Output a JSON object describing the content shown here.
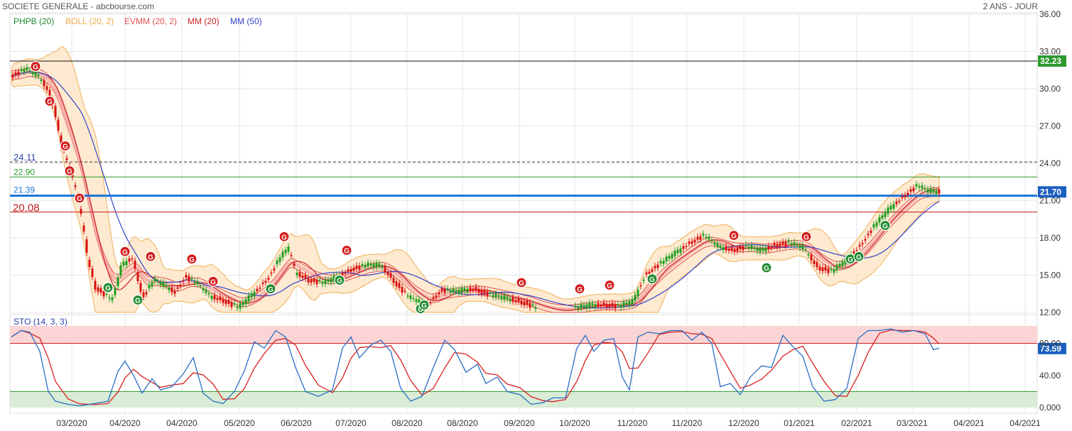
{
  "header": {
    "title": "SOCIETE GENERALE - abcbourse.com",
    "period": "2 ANS - JOUR"
  },
  "legend": {
    "phpb": "PHPB (20)",
    "boll": "BOLL (20, 2)",
    "evmm": "EVMM (20, 2)",
    "mm20": "MM (20)",
    "mm50": "MM (50)"
  },
  "colors": {
    "up": "#1e9e1e",
    "down": "#d81010",
    "boll_fill": "#fde8cc",
    "boll_line": "#f0a848",
    "evmm": "#e05050",
    "mm20": "#cc2222",
    "mm50": "#3344cc",
    "hline_blue": "#1a74d6",
    "sto_k": "#2a6fc4",
    "sto_d": "#d82020",
    "sto_top_zone": "#fbd5d5",
    "sto_bottom_zone": "#d9ecd6"
  },
  "levels": {
    "resistance": {
      "value": 32.23,
      "label": "32.23"
    },
    "dashed": {
      "value": 24.11,
      "label": "24.11"
    },
    "green": {
      "value": 22.9,
      "label": "22.90"
    },
    "last": {
      "value": 21.7,
      "label": "21.70"
    },
    "blue": {
      "value": 21.39,
      "label": "21.39"
    },
    "red": {
      "value": 20.08,
      "label": "20.08"
    }
  },
  "sto": {
    "label": "STO (14, 3, 3)",
    "last_label": "73.59",
    "last": 73.59,
    "upper": 80,
    "lower": 20
  },
  "chart_data": {
    "type": "line",
    "price": {
      "y_ticks": [
        "36.00",
        "33.00",
        "30.00",
        "27.00",
        "24.00",
        "21.00",
        "18.00",
        "15.00",
        "12.00"
      ],
      "ylim": [
        12,
        36
      ],
      "x_labels": [
        "03/2020",
        "04/2020",
        "04/2020",
        "05/2020",
        "06/2020",
        "07/2020",
        "08/2020",
        "08/2020",
        "09/2020",
        "10/2020",
        "11/2020",
        "11/2020",
        "12/2020",
        "01/2021",
        "02/2021",
        "03/2021",
        "04/2021",
        "04/2021"
      ],
      "series": [
        {
          "x": [
            0,
            2,
            4,
            6,
            8,
            10,
            12,
            14,
            16,
            18,
            20,
            22,
            24,
            26,
            28,
            30,
            32,
            34,
            36,
            38,
            40,
            42,
            44,
            46,
            48,
            50,
            52,
            54,
            56,
            58,
            60,
            62,
            64,
            66,
            68,
            70,
            72,
            74,
            76,
            78,
            80,
            82,
            84,
            86,
            88,
            90,
            92,
            94,
            96,
            98,
            100,
            102,
            104,
            106,
            108,
            110,
            112,
            114,
            116,
            118,
            120,
            122,
            124,
            126,
            128,
            130,
            132,
            134,
            136,
            138,
            140,
            142,
            144,
            146,
            148,
            150,
            152,
            154,
            156,
            158,
            160,
            162,
            164,
            166,
            168,
            170,
            172,
            174,
            176,
            178,
            180,
            182,
            184,
            186,
            188,
            190,
            192,
            194,
            196,
            198,
            200,
            202,
            204,
            206,
            208,
            210,
            212,
            214,
            216,
            218,
            220,
            222,
            224,
            226,
            228,
            230,
            232,
            234,
            236,
            238,
            240,
            242,
            244,
            246,
            248,
            250,
            252,
            254,
            256,
            258,
            260,
            262,
            264,
            266,
            268,
            270,
            272,
            274,
            276,
            278,
            280,
            282,
            284,
            286,
            288,
            290,
            292,
            294,
            296,
            298,
            300,
            302,
            304,
            306,
            308,
            310,
            312,
            314,
            316,
            318,
            320,
            322,
            324,
            326,
            328,
            330,
            332,
            334,
            336,
            338,
            340,
            342,
            344,
            346,
            348,
            350,
            352,
            354,
            356,
            358,
            360,
            362,
            364,
            366,
            368,
            370,
            372,
            374,
            376,
            378,
            380,
            382,
            384,
            386,
            388,
            390,
            392,
            394,
            396,
            398,
            400,
            402,
            404,
            406,
            408,
            410,
            412,
            414,
            416,
            418,
            420,
            422,
            424,
            426,
            428,
            430,
            432,
            434,
            436,
            438,
            440,
            442,
            444,
            446,
            448,
            450,
            452,
            454,
            456,
            458,
            460,
            462,
            464,
            466,
            468,
            470,
            472,
            474,
            476,
            478,
            480,
            482,
            484,
            486,
            488,
            490,
            492,
            494,
            496,
            498,
            500,
            502,
            504,
            506,
            508,
            510,
            512,
            514,
            516,
            518,
            520,
            522,
            524,
            526,
            528,
            530,
            532,
            534,
            536,
            538,
            540,
            542,
            544,
            546,
            548,
            550,
            552,
            554,
            556,
            558,
            560,
            562,
            564,
            566,
            568,
            570,
            572,
            574,
            576,
            578,
            580,
            582,
            584,
            586,
            588,
            590,
            592,
            594,
            596,
            598,
            600,
            602,
            604,
            606,
            608,
            610,
            612,
            614,
            616,
            618,
            620,
            622,
            624,
            626,
            628,
            630,
            632,
            634,
            636,
            638,
            640,
            642,
            644,
            646,
            648,
            650,
            652,
            654,
            656,
            658,
            660,
            662,
            664,
            666,
            668,
            670,
            672,
            674,
            676,
            678,
            680,
            682,
            684,
            686,
            688,
            690,
            692,
            694,
            696,
            698,
            700,
            702,
            704,
            706,
            708,
            710,
            712,
            714,
            716,
            718,
            720,
            722,
            724,
            726,
            728,
            730,
            732,
            734,
            736,
            738,
            740,
            742,
            744,
            746,
            748,
            750,
            752,
            754,
            756,
            758,
            760,
            762,
            764,
            766,
            768,
            770,
            772,
            774,
            776,
            778,
            780,
            782,
            784,
            786,
            788,
            790,
            792,
            794,
            796,
            798,
            800,
            802,
            804,
            806,
            808,
            810,
            812,
            814,
            816,
            818,
            820,
            822,
            824,
            826,
            828,
            830,
            832,
            834,
            836,
            838,
            840,
            842,
            844,
            846,
            848,
            850,
            852,
            854,
            856,
            858,
            860,
            862,
            864,
            866,
            868,
            870,
            872,
            874,
            876,
            878,
            880,
            882,
            884,
            886,
            888,
            890,
            892,
            894,
            896,
            898,
            900,
            902,
            904,
            906,
            908,
            910,
            912,
            914,
            916,
            918,
            920,
            922,
            924,
            926,
            928,
            930,
            932,
            934,
            936,
            938,
            940,
            942,
            944,
            946,
            948,
            950,
            952,
            954,
            956,
            958,
            960,
            962,
            964,
            966,
            968,
            970,
            972,
            974,
            976,
            978,
            980,
            982,
            984,
            986,
            988,
            990,
            992,
            994,
            996,
            998,
            1000,
            1002,
            1004,
            1006,
            1008,
            1010,
            1012,
            1014,
            1016,
            1018,
            1020,
            1022,
            1024,
            1026,
            1028,
            1030,
            1032,
            1034,
            1036,
            1038,
            1040,
            1042,
            1044,
            1046,
            1048,
            1050,
            1052,
            1054,
            1056,
            1058,
            1060,
            1062,
            1064,
            1066,
            1068,
            1070,
            1072,
            1074,
            1076,
            1078,
            1080,
            1082,
            1084,
            1086,
            1088,
            1090,
            1092,
            1094,
            1096,
            1098,
            1100,
            1102,
            1104,
            1106,
            1108,
            1110,
            1112,
            1114,
            1116,
            1118,
            1120,
            1122,
            1124,
            1126,
            1128,
            1130,
            1132,
            1134,
            1136,
            1138,
            1140,
            1142,
            1144,
            1146,
            1148,
            1150,
            1152,
            1154,
            1156,
            1158,
            1160,
            1162,
            1164,
            1166,
            1168,
            1170,
            1172,
            1174,
            1176,
            1178,
            1180,
            1182,
            1184,
            1186,
            1188,
            1190,
            1192,
            1194,
            1196,
            1198,
            1200,
            1202,
            1204,
            1206,
            1208,
            1210,
            1212,
            1214,
            1216,
            1218,
            1220,
            1222,
            1224,
            1226,
            1228,
            1230,
            1232,
            1234,
            1236,
            1238,
            1240,
            1242,
            1244,
            1246,
            1248,
            1250,
            1252,
            1254,
            1256,
            1258,
            1260,
            1262,
            1264,
            1266,
            1268,
            1270,
            1272,
            1274,
            1276,
            1278,
            1280,
            1282,
            1284,
            1286,
            1288,
            1290,
            1292,
            1294,
            1296,
            1298,
            1300,
            1302,
            1304,
            1306
          ]
        }
      ]
    },
    "stochastic": {
      "ylim": [
        0,
        100
      ],
      "y_ticks": [
        "80.00",
        "40.00",
        "0.000"
      ]
    }
  }
}
